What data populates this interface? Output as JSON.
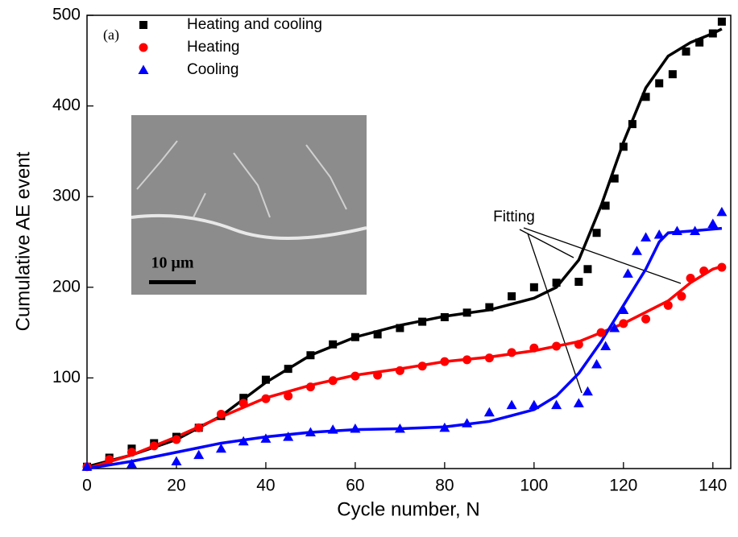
{
  "chart_data": {
    "type": "scatter",
    "panel_label": "(a)",
    "x_label": "Cycle number, N",
    "y_label": "Cumulative AE event",
    "annotation": "Fitting",
    "inset_scale": "10 μm",
    "xlim": [
      0,
      144
    ],
    "xticks": [
      0,
      20,
      40,
      60,
      80,
      100,
      120,
      140
    ],
    "ylim": [
      0,
      500
    ],
    "yticks": [
      100,
      200,
      300,
      400,
      500
    ],
    "series": [
      {
        "name": "Heating and cooling",
        "color": "#000000",
        "marker": "square",
        "x": [
          0,
          5,
          10,
          15,
          20,
          25,
          30,
          35,
          40,
          45,
          50,
          55,
          60,
          65,
          70,
          75,
          80,
          85,
          90,
          95,
          100,
          105,
          110,
          112,
          114,
          116,
          118,
          120,
          122,
          125,
          128,
          131,
          134,
          137,
          140,
          142
        ],
        "values": [
          2,
          12,
          22,
          28,
          35,
          45,
          58,
          78,
          98,
          110,
          125,
          137,
          145,
          148,
          155,
          162,
          167,
          172,
          178,
          190,
          200,
          205,
          206,
          220,
          260,
          290,
          320,
          355,
          380,
          410,
          425,
          435,
          460,
          470,
          480,
          493
        ]
      },
      {
        "name": "Heating",
        "color": "#ff0000",
        "marker": "circle",
        "x": [
          0,
          5,
          10,
          15,
          20,
          25,
          30,
          35,
          40,
          45,
          50,
          55,
          60,
          65,
          70,
          75,
          80,
          85,
          90,
          95,
          100,
          105,
          110,
          115,
          120,
          125,
          130,
          133,
          135,
          138,
          142
        ],
        "values": [
          2,
          10,
          18,
          25,
          32,
          45,
          60,
          72,
          77,
          80,
          90,
          97,
          102,
          103,
          108,
          113,
          118,
          120,
          122,
          128,
          133,
          135,
          137,
          150,
          160,
          165,
          180,
          190,
          210,
          218,
          222
        ]
      },
      {
        "name": "Cooling",
        "color": "#0000ff",
        "marker": "triangle",
        "x": [
          0,
          10,
          20,
          25,
          30,
          35,
          40,
          45,
          50,
          55,
          60,
          70,
          80,
          85,
          90,
          95,
          100,
          105,
          110,
          112,
          114,
          116,
          118,
          120,
          121,
          123,
          125,
          128,
          132,
          136,
          140,
          142
        ],
        "values": [
          2,
          5,
          8,
          15,
          22,
          30,
          33,
          35,
          40,
          43,
          44,
          44,
          45,
          50,
          62,
          70,
          70,
          70,
          72,
          85,
          115,
          135,
          155,
          175,
          215,
          240,
          255,
          258,
          262,
          262,
          270,
          283
        ]
      }
    ],
    "fits": [
      {
        "color": "#000000",
        "x": [
          0,
          10,
          20,
          30,
          40,
          50,
          60,
          70,
          80,
          90,
          100,
          105,
          110,
          115,
          120,
          125,
          130,
          135,
          140,
          142
        ],
        "values": [
          2,
          15,
          32,
          58,
          95,
          125,
          145,
          158,
          168,
          175,
          188,
          200,
          230,
          290,
          360,
          420,
          455,
          470,
          480,
          485
        ]
      },
      {
        "color": "#ff0000",
        "x": [
          0,
          10,
          20,
          30,
          40,
          50,
          60,
          70,
          80,
          90,
          100,
          110,
          120,
          130,
          135,
          140,
          142
        ],
        "values": [
          0,
          15,
          35,
          57,
          78,
          92,
          103,
          110,
          118,
          123,
          130,
          140,
          160,
          185,
          205,
          220,
          223
        ]
      },
      {
        "color": "#0000ff",
        "x": [
          0,
          10,
          20,
          30,
          40,
          50,
          60,
          70,
          80,
          90,
          100,
          105,
          110,
          115,
          120,
          125,
          128,
          130,
          135,
          142
        ],
        "values": [
          0,
          8,
          18,
          28,
          35,
          40,
          43,
          44,
          46,
          52,
          65,
          80,
          105,
          140,
          180,
          220,
          250,
          260,
          262,
          265
        ]
      }
    ]
  }
}
